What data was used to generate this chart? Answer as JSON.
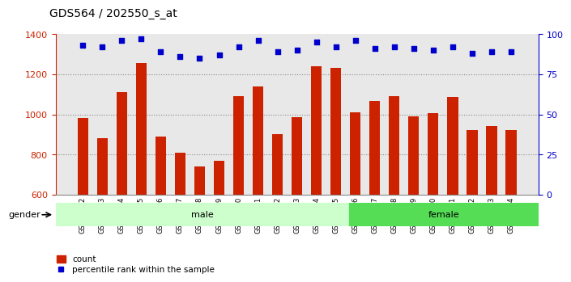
{
  "title": "GDS564 / 202550_s_at",
  "samples": [
    "GSM19192",
    "GSM19193",
    "GSM19194",
    "GSM19195",
    "GSM19196",
    "GSM19197",
    "GSM19198",
    "GSM19199",
    "GSM19200",
    "GSM19201",
    "GSM19202",
    "GSM19203",
    "GSM19204",
    "GSM19205",
    "GSM19206",
    "GSM19207",
    "GSM19208",
    "GSM19209",
    "GSM19210",
    "GSM19211",
    "GSM19212",
    "GSM19213",
    "GSM19214"
  ],
  "counts": [
    980,
    880,
    1110,
    1255,
    890,
    810,
    740,
    770,
    1090,
    1140,
    900,
    985,
    1240,
    1230,
    1010,
    1065,
    1090,
    990,
    1005,
    1085,
    920,
    940,
    920
  ],
  "percentiles": [
    93,
    92,
    96,
    97,
    89,
    86,
    85,
    87,
    92,
    96,
    89,
    90,
    95,
    92,
    96,
    91,
    92,
    91,
    90,
    92,
    88,
    89,
    89
  ],
  "gender": [
    "male",
    "male",
    "male",
    "male",
    "male",
    "male",
    "male",
    "male",
    "male",
    "male",
    "male",
    "male",
    "male",
    "male",
    "female",
    "female",
    "female",
    "female",
    "female",
    "female",
    "female",
    "female",
    "female"
  ],
  "ylim_left": [
    600,
    1400
  ],
  "ylim_right": [
    0,
    100
  ],
  "yticks_left": [
    600,
    800,
    1000,
    1200,
    1400
  ],
  "yticks_right": [
    0,
    25,
    50,
    75,
    100
  ],
  "bar_color": "#cc2200",
  "dot_color": "#0000cc",
  "male_color": "#ccffcc",
  "female_color": "#55dd55",
  "grid_color": "#888888",
  "bg_color": "#e8e8e8",
  "title_fontsize": 10,
  "axis_color_left": "#cc2200",
  "axis_color_right": "#0000cc"
}
